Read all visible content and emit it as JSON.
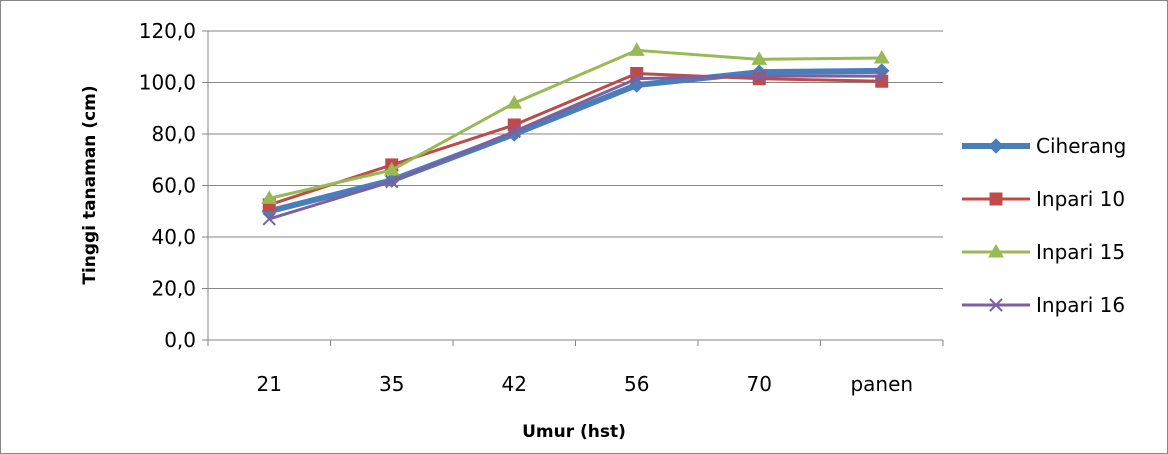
{
  "chart_data": {
    "type": "line",
    "xlabel": "Umur (hst)",
    "ylabel": "Tinggi tanaman (cm)",
    "categories": [
      "21",
      "35",
      "42",
      "56",
      "70",
      "panen"
    ],
    "ylim": [
      0,
      120
    ],
    "yticks": [
      "0,0",
      "20,0",
      "40,0",
      "60,0",
      "80,0",
      "100,0",
      "120,0"
    ],
    "grid": true,
    "legend": "right",
    "series": [
      {
        "name": "Ciherang",
        "values": [
          50.0,
          62.0,
          80.0,
          99.0,
          104.0,
          104.5
        ],
        "color": "#4a7ebb",
        "marker": "diamond"
      },
      {
        "name": "Inpari 10",
        "values": [
          52.5,
          68.0,
          83.5,
          103.5,
          101.5,
          100.5
        ],
        "color": "#be4b48",
        "marker": "square"
      },
      {
        "name": "Inpari 15",
        "values": [
          55.0,
          66.0,
          92.0,
          112.5,
          109.0,
          109.5
        ],
        "color": "#98b954",
        "marker": "triangle"
      },
      {
        "name": "Inpari 16",
        "values": [
          47.0,
          61.5,
          81.0,
          101.5,
          102.5,
          102.5
        ],
        "color": "#7d60a0",
        "marker": "x"
      }
    ]
  }
}
